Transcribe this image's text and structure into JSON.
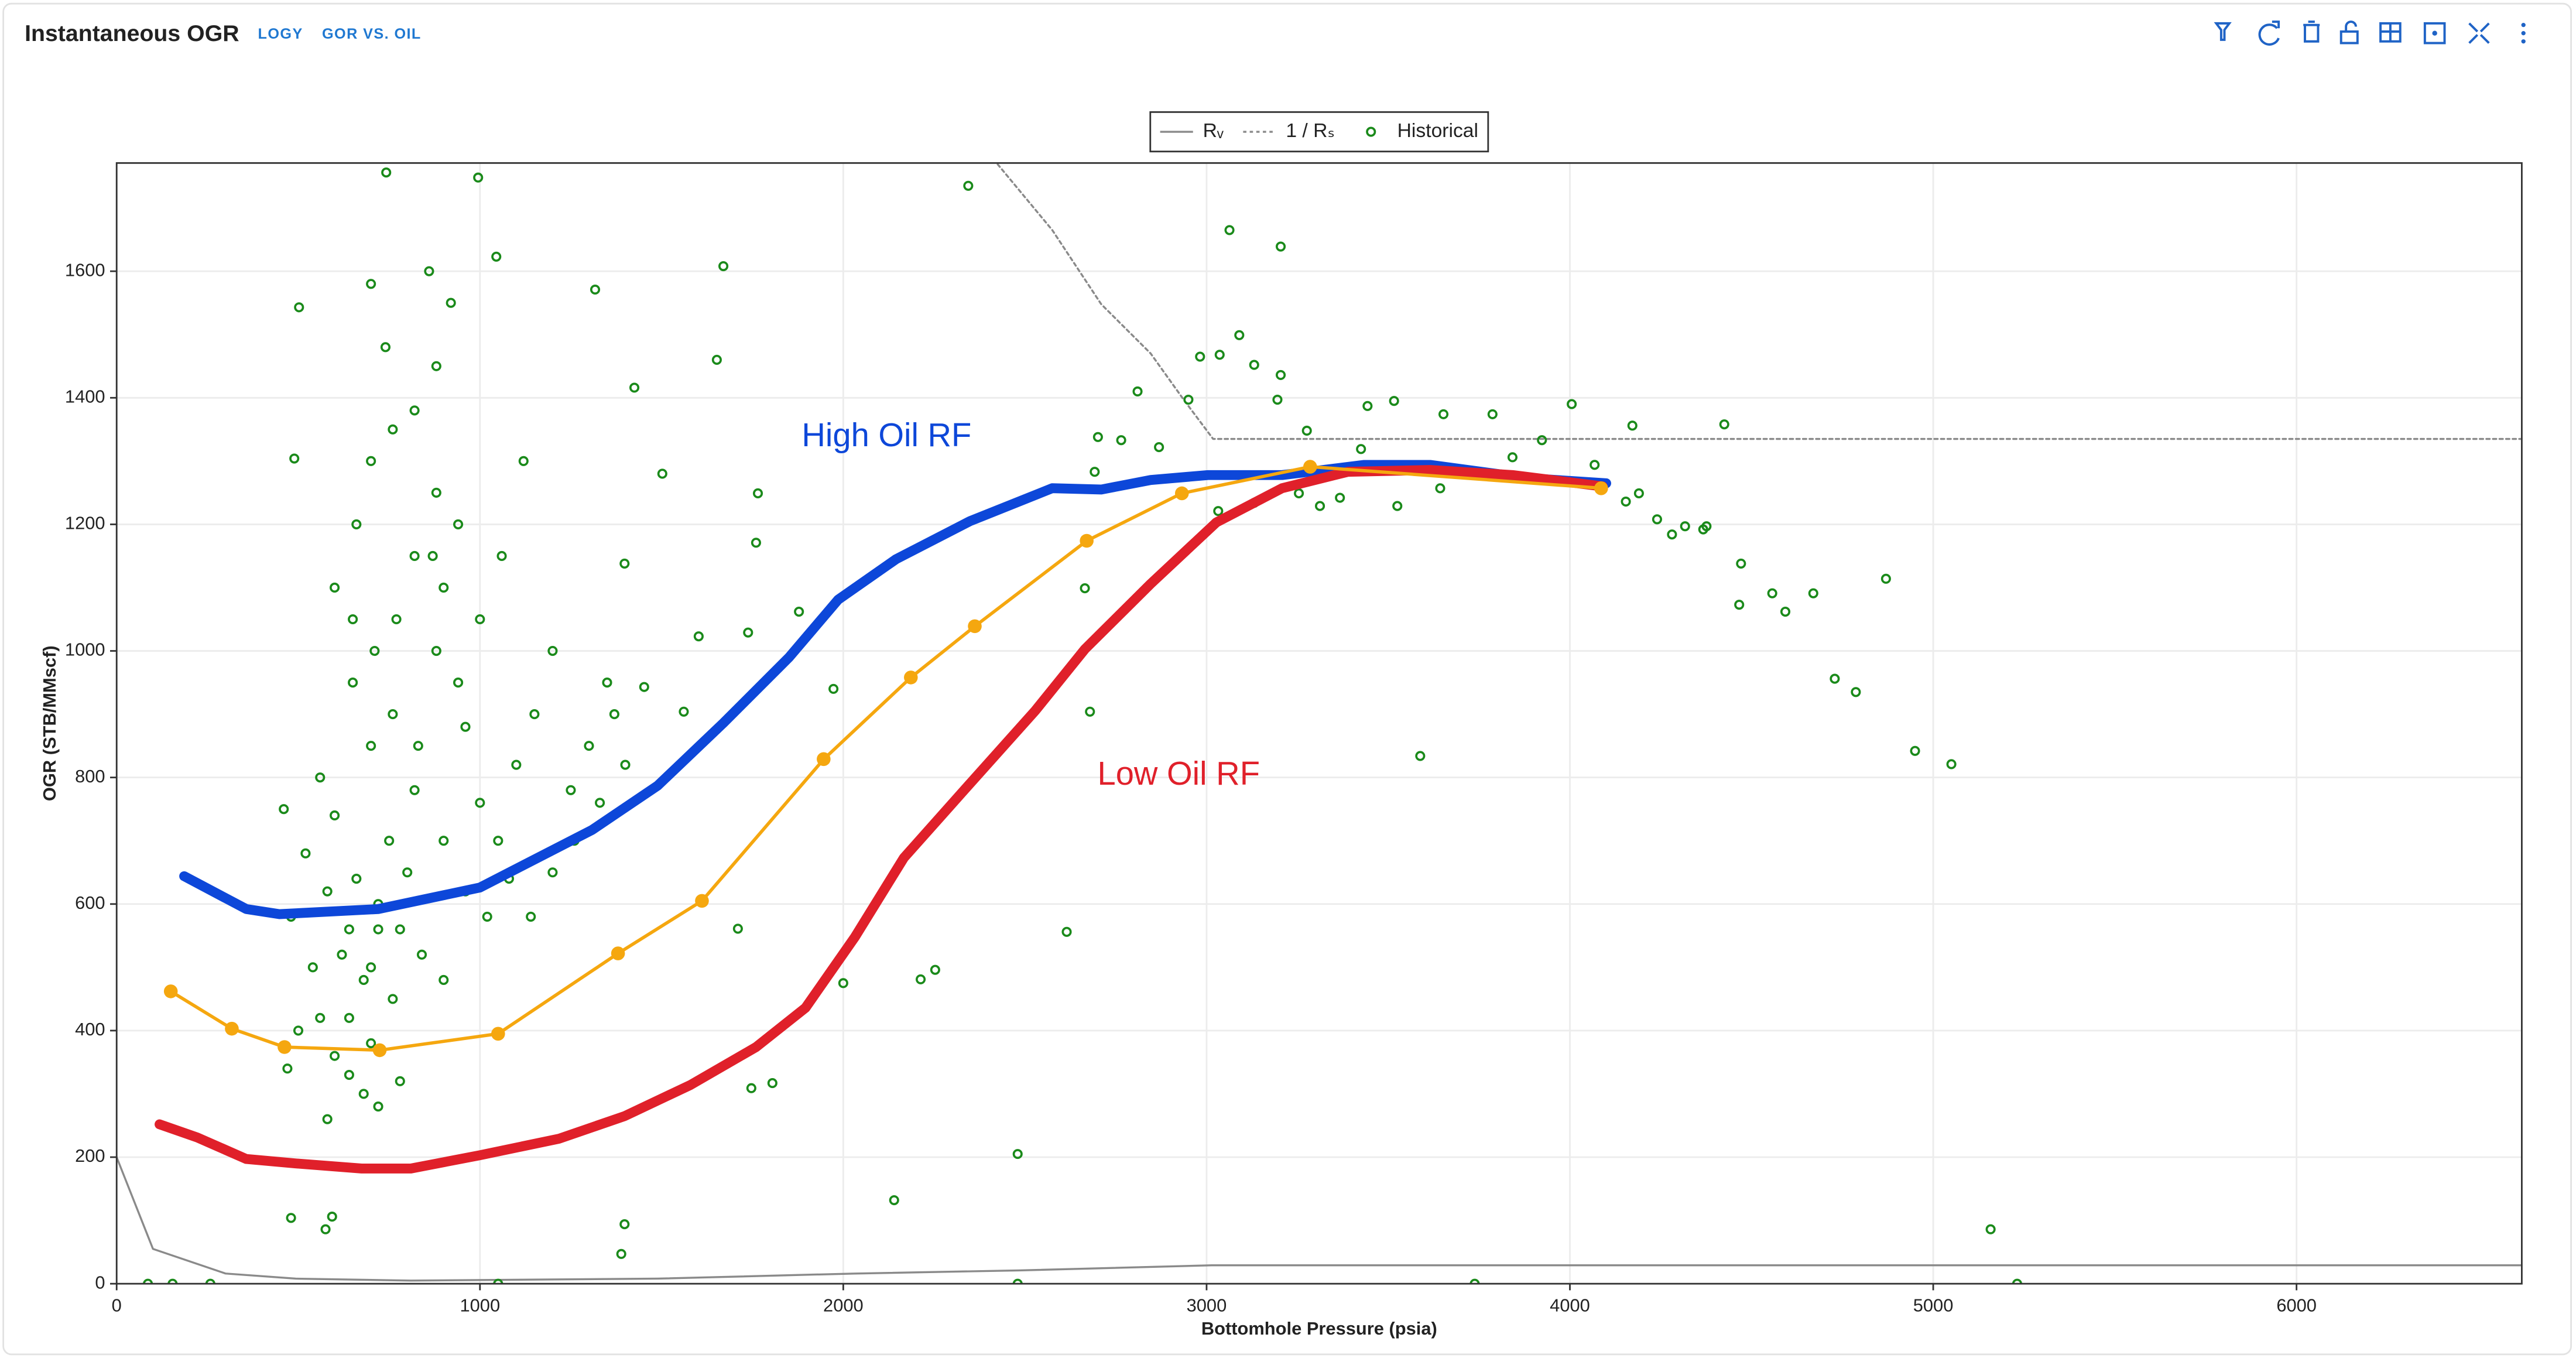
{
  "header": {
    "title": "Instantaneous OGR",
    "tabs": [
      "LOGY",
      "GOR VS. OIL"
    ]
  },
  "chart_data": {
    "type": "line",
    "xlabel": "Bottomhole Pressure (psia)",
    "ylabel": "OGR (STB/MMscf)",
    "xlim": [
      0,
      6620
    ],
    "xticks": [
      0,
      1000,
      2000,
      3000,
      4000,
      5000,
      6000
    ],
    "ylim": [
      0,
      1771
    ],
    "yticks": [
      0,
      200,
      400,
      600,
      800,
      1000,
      1200,
      1400,
      1600
    ],
    "grid": true,
    "legend": "top",
    "annotations": [
      {
        "text": "High Oil RF",
        "color": "#0d47d9"
      },
      {
        "text": "Low Oil RF",
        "color": "#e0202a"
      }
    ],
    "series": [
      {
        "name": "Rᵥ",
        "color": "#8a8a8a",
        "mode": "lines",
        "dash": "solid",
        "x": [
          0,
          100,
          300,
          493,
          810,
          1489,
          2032,
          2484,
          3014,
          6620
        ],
        "values": [
          200,
          55,
          16,
          8,
          5,
          8,
          16,
          21,
          29,
          29
        ]
      },
      {
        "name": "1 / Rₛ",
        "color": "#8a8a8a",
        "mode": "lines",
        "dash": "dotted",
        "x": [
          2425,
          2575,
          2710,
          2846,
          2937,
          3018,
          6620
        ],
        "values": [
          1769,
          1665,
          1548,
          1470,
          1397,
          1335,
          1335
        ]
      },
      {
        "name": "Historical",
        "color": "#1a8a1a",
        "mode": "markers",
        "x": [
          502,
          489,
          742,
          995,
          1045,
          1317,
          1670,
          2344,
          3063,
          3204,
          1652,
          1425,
          1502,
          1765,
          1760,
          1398,
          1878,
          1738,
          1602,
          1452,
          1561,
          1973,
          1710,
          1805,
          1747,
          2000,
          2213,
          2253,
          2140,
          2480,
          2615,
          2679,
          1398,
          1389,
          1050,
          3588,
          4950,
          5050,
          4729,
          4787,
          4870,
          4670,
          4593,
          4557,
          4466,
          4471,
          4376,
          4367,
          4317,
          4281,
          4240,
          4190,
          4154,
          4425,
          4172,
          4005,
          3923,
          3787,
          3652,
          3516,
          3443,
          3425,
          3525,
          3643,
          3842,
          4068,
          3036,
          2982,
          3090,
          3131,
          3204,
          3195,
          2950,
          2810,
          2701,
          2765,
          2869,
          2692,
          2665,
          3032,
          3131,
          3254,
          3367,
          3312,
          3276,
          5231,
          5158,
          3738,
          2480,
          258,
          86,
          154,
          480,
          593,
          575,
          600,
          650,
          700,
          750,
          800,
          620,
          680,
          720,
          580,
          640,
          700,
          760,
          820,
          880,
          940,
          660,
          700,
          760,
          820,
          880,
          900,
          960,
          1000,
          1050,
          1100,
          1150,
          1200,
          1250,
          1300,
          1350,
          560,
          600,
          660,
          720,
          780,
          840,
          900,
          540,
          560,
          600,
          640,
          680,
          720,
          780,
          580,
          640,
          700,
          760,
          820,
          880,
          940,
          1000,
          1060,
          1120,
          870,
          650,
          710,
          770,
          830,
          900,
          960,
          1020,
          1080,
          1140,
          1200,
          1260,
          1330,
          1400,
          1370,
          460,
          480,
          520,
          500,
          470,
          860,
          920,
          700,
          740
        ],
        "values": [
          1543,
          1304,
          1756,
          1748,
          1623,
          1571,
          1608,
          1735,
          1665,
          1639,
          1460,
          1416,
          1280,
          1249,
          1171,
          1138,
          1062,
          1029,
          1023,
          943,
          904,
          940,
          561,
          317,
          309,
          475,
          481,
          496,
          132,
          205,
          556,
          904,
          94,
          47,
          0,
          834,
          842,
          821,
          956,
          935,
          1114,
          1091,
          1062,
          1091,
          1073,
          1138,
          1197,
          1192,
          1197,
          1184,
          1208,
          1249,
          1236,
          1358,
          1356,
          1390,
          1333,
          1374,
          1374,
          1395,
          1387,
          1319,
          1229,
          1257,
          1306,
          1294,
          1468,
          1465,
          1499,
          1452,
          1436,
          1397,
          1397,
          1410,
          1338,
          1333,
          1322,
          1283,
          1099,
          1221,
          1234,
          1249,
          1242,
          1229,
          1348,
          0,
          86,
          0,
          0,
          0,
          0,
          0,
          104,
          106,
          86,
          1100,
          950,
          850,
          700,
          650,
          520,
          480,
          560,
          620,
          420,
          380,
          900,
          780,
          1000,
          1200,
          1200,
          1300,
          1350,
          1380,
          1450,
          1100,
          880,
          760,
          700,
          820,
          900,
          1000,
          780,
          850,
          950,
          800,
          740,
          640,
          600,
          560,
          520,
          480,
          500,
          420,
          360,
          330,
          300,
          280,
          320,
          260,
          560,
          500,
          450,
          1150,
          1250,
          950,
          1050,
          1150,
          1300,
          1150,
          1050,
          1000,
          1050,
          850,
          700,
          620,
          580,
          640,
          580,
          650,
          700,
          760,
          820,
          900,
          750,
          580,
          680,
          400,
          340,
          1600,
          1550,
          1580,
          1480
        ]
      },
      {
        "color": "#0d47d9",
        "mode": "lines",
        "x": [
          186,
          357,
          448,
          720,
          1000,
          1308,
          1489,
          1670,
          1851,
          1986,
          2145,
          2348,
          2575,
          2710,
          2846,
          3004,
          3208,
          3434,
          3615,
          3887,
          4100
        ],
        "values": [
          644,
          592,
          584,
          592,
          626,
          717,
          787,
          886,
          990,
          1081,
          1145,
          1205,
          1257,
          1255,
          1270,
          1278,
          1278,
          1294,
          1294,
          1273,
          1265
        ]
      },
      {
        "color": "#e0202a",
        "mode": "lines",
        "x": [
          118,
          222,
          357,
          493,
          674,
          810,
          1000,
          1217,
          1398,
          1579,
          1760,
          1896,
          2032,
          2167,
          2348,
          2529,
          2665,
          2846,
          3027,
          3208,
          3389,
          3615,
          3842,
          4090
        ],
        "values": [
          252,
          231,
          197,
          190,
          182,
          182,
          203,
          229,
          265,
          314,
          374,
          436,
          548,
          673,
          790,
          906,
          1003,
          1106,
          1203,
          1257,
          1283,
          1286,
          1278,
          1260
        ]
      },
      {
        "color": "#f5a70f",
        "mode": "lines+markers",
        "x": [
          149,
          317,
          462,
          724,
          1050,
          1380,
          1611,
          1946,
          2186,
          2362,
          2670,
          2932,
          3285,
          4086
        ],
        "values": [
          462,
          403,
          374,
          369,
          395,
          522,
          605,
          829,
          958,
          1039,
          1174,
          1249,
          1291,
          1257
        ]
      }
    ]
  }
}
